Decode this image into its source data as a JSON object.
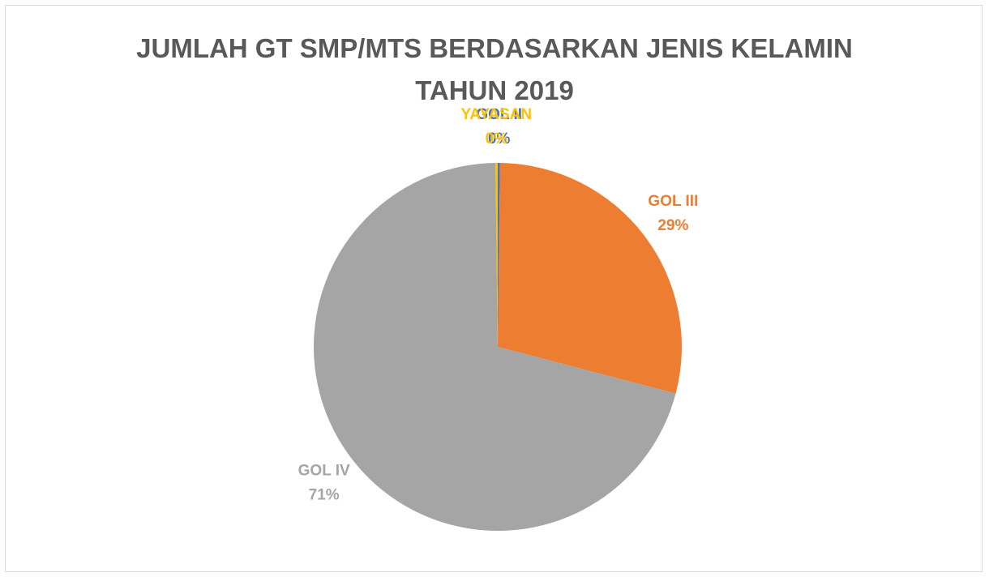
{
  "chart_data": {
    "type": "pie",
    "title": "JUMLAH GT SMP/MTS BERDASARKAN JENIS KELAMIN TAHUN 2019",
    "categories": [
      "GOL II",
      "GOL III",
      "GOL IV",
      "YAYASAN"
    ],
    "values": [
      0.2,
      29,
      71,
      0.2
    ],
    "value_labels": [
      "0%",
      "29%",
      "71%",
      "0%"
    ],
    "colors": [
      "#4472c4",
      "#ed7d31",
      "#a5a5a5",
      "#ffc000"
    ]
  }
}
